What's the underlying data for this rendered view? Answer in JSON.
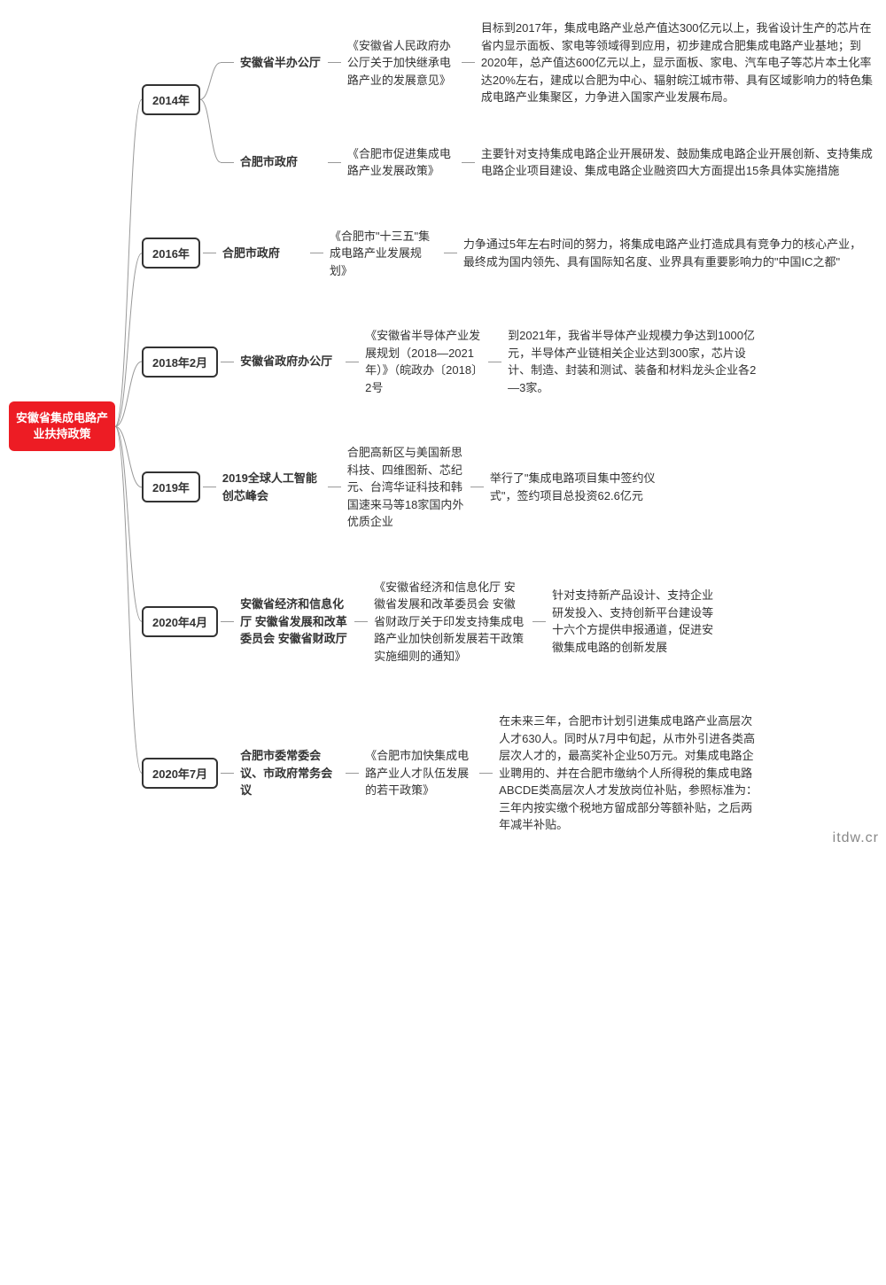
{
  "root": {
    "label": "安徽省集成电路产业扶持政策",
    "bg_color": "#ed1c24",
    "text_color": "#ffffff"
  },
  "branches": [
    {
      "year": "2014年",
      "items": [
        {
          "org": "安徽省半办公厅",
          "policy": "《安徽省人民政府办公厅关于加快继承电路产业的发展意见》",
          "detail": "目标到2017年，集成电路产业总产值达300亿元以上，我省设计生产的芯片在省内显示面板、家电等领域得到应用，初步建成合肥集成电路产业基地；到2020年，总产值达600亿元以上，显示面板、家电、汽车电子等芯片本土化率达20%左右，建成以合肥为中心、辐射皖江城市带、具有区域影响力的特色集成电路产业集聚区，力争进入国家产业发展布局。"
        },
        {
          "org": "合肥市政府",
          "policy": "《合肥市促进集成电路产业发展政策》",
          "detail": "主要针对支持集成电路企业开展研发、鼓励集成电路企业开展创新、支持集成电路企业项目建设、集成电路企业融资四大方面提出15条具体实施措施"
        }
      ]
    },
    {
      "year": "2016年",
      "items": [
        {
          "org": "合肥市政府",
          "policy": "《合肥市\"十三五\"集成电路产业发展规划》",
          "detail": "力争通过5年左右时间的努力，将集成电路产业打造成具有竞争力的核心产业，最终成为国内领先、具有国际知名度、业界具有重要影响力的\"中国IC之都\""
        }
      ]
    },
    {
      "year": "2018年2月",
      "items": [
        {
          "org": "安徽省政府办公厅",
          "policy": "《安徽省半导体产业发展规划（2018—2021年）》（皖政办〔2018〕2号",
          "detail": "到2021年，我省半导体产业规模力争达到1000亿元，半导体产业链相关企业达到300家，芯片设计、制造、封装和测试、装备和材料龙头企业各2—3家。"
        }
      ]
    },
    {
      "year": "2019年",
      "items": [
        {
          "org": "2019全球人工智能创芯峰会",
          "policy": "合肥高新区与美国新思科技、四维图新、芯纪元、台湾华证科技和韩国速来马等18家国内外优质企业",
          "detail": "举行了\"集成电路项目集中签约仪式\"，签约项目总投资62.6亿元"
        }
      ]
    },
    {
      "year": "2020年4月",
      "items": [
        {
          "org": "安徽省经济和信息化厅 安徽省发展和改革委员会 安徽省财政厅",
          "policy": "《安徽省经济和信息化厅 安徽省发展和改革委员会 安徽省财政厅关于印发支持集成电路产业加快创新发展若干政策实施细则的通知》",
          "detail": "针对支持新产品设计、支持企业研发投入、支持创新平台建设等十六个方提供申报通道，促进安徽集成电路的创新发展"
        }
      ]
    },
    {
      "year": "2020年7月",
      "items": [
        {
          "org": "合肥市委常委会议、市政府常务会议",
          "policy": "《合肥市加快集成电路产业人才队伍发展的若干政策》",
          "detail": "在未来三年，合肥市计划引进集成电路产业高层次人才630人。同时从7月中旬起，从市外引进各类高层次人才的，最高奖补企业50万元。对集成电路企业聘用的、并在合肥市缴纳个人所得税的集成电路ABCDE类高层次人才发放岗位补贴，参照标准为：三年内按实缴个税地方留成部分等额补贴，之后两年减半补贴。"
        }
      ]
    }
  ],
  "watermark": "itdw.cr",
  "style": {
    "line_color": "#999999",
    "node_border_color": "#333333",
    "background": "#ffffff",
    "font_size_base": 13
  }
}
